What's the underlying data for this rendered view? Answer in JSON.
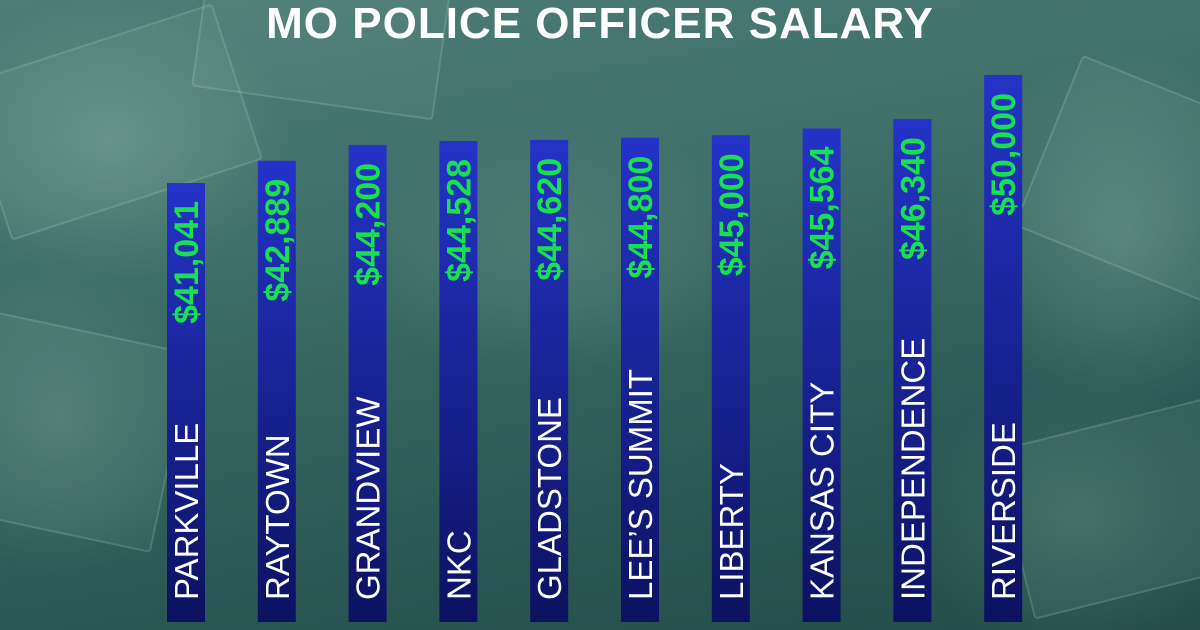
{
  "chart_data": {
    "type": "bar",
    "orientation": "vertical",
    "title": "MO POLICE OFFICER SALARY",
    "xlabel": "",
    "ylabel": "",
    "categories": [
      "PARKVILLE",
      "RAYTOWN",
      "GRANDVIEW",
      "NKC",
      "GLADSTONE",
      "LEE’S SUMMIT",
      "LIBERTY",
      "KANSAS CITY",
      "INDEPENDENCE",
      "RIVERSIDE"
    ],
    "values": [
      41041,
      42889,
      44200,
      44528,
      44620,
      44800,
      45000,
      45564,
      46340,
      50000
    ],
    "value_labels": [
      "$41,041",
      "$42,889",
      "$44,200",
      "$44,528",
      "$44,620",
      "$44,800",
      "$45,000",
      "$45,564",
      "$46,340",
      "$50,000"
    ],
    "ylim": [
      0,
      50000
    ],
    "grid": false,
    "legend": "none",
    "colors": {
      "bar_top": "#2433c8",
      "bar_bottom": "#0b1260",
      "value_text": "#19e050",
      "category_text": "#ffffff",
      "title_text": "#ffffff"
    }
  }
}
